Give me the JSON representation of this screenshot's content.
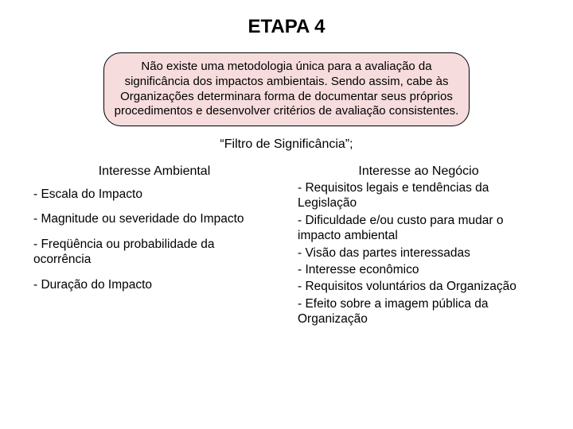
{
  "title": "ETAPA 4",
  "callout_text": "Não existe uma metodologia única para a avaliação da significância dos impactos ambientais. Sendo assim, cabe às Organizações determinara forma de documentar seus próprios procedimentos e desenvolver critérios de avaliação consistentes.",
  "subtitle": "“Filtro de Significância”;",
  "left": {
    "heading": "Interesse Ambiental",
    "items": [
      "- Escala do Impacto",
      "- Magnitude ou severidade do Impacto",
      "- Freqüência ou probabilidade da ocorrência",
      "- Duração do Impacto"
    ]
  },
  "right": {
    "heading": "Interesse ao Negócio",
    "items": [
      "- Requisitos legais e tendências da Legislação",
      "- Dificuldade e/ou custo para mudar o impacto ambiental",
      "- Visão das partes interessadas",
      "- Interesse econômico",
      "- Requisitos voluntários da Organização",
      "- Efeito sobre a imagem pública da Organização"
    ]
  },
  "colors": {
    "background": "#ffffff",
    "text": "#000000",
    "callout_bg": "#f6dcdc",
    "callout_border": "#000000"
  },
  "fonts": {
    "title_size": 24,
    "body_size": 15.5,
    "subtitle_size": 16
  }
}
